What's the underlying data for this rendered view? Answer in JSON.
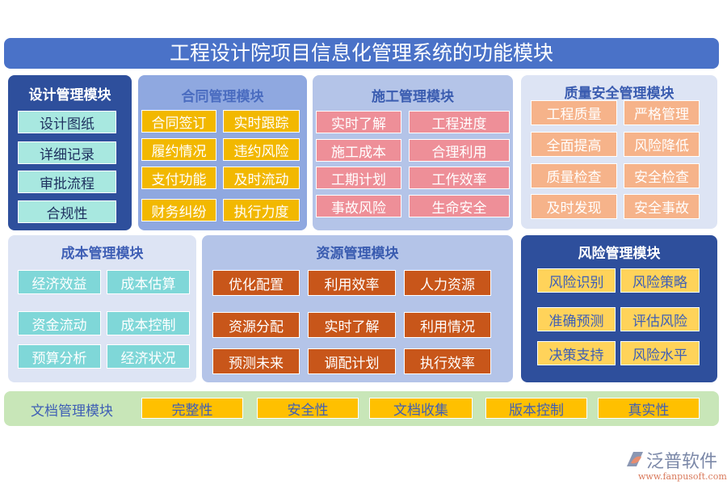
{
  "title": "工程设计院项目信息化管理系统的功能模块",
  "colors": {
    "title_bar": "#4a72c8",
    "dark_module": "#2e4f9c",
    "design_item": "#a8e8e0",
    "contract_item": "#f2b800",
    "construction_item": "#ee8f98",
    "quality_item": "#f6b38a",
    "cost_item": "#7fd7d8",
    "resource_item": "#c8561a",
    "risk_item": "#ffd35a",
    "doc_item": "#ffc000",
    "doc_band": "#c8e6b8"
  },
  "modules": {
    "design": {
      "title": "设计管理模块",
      "items": [
        "设计图纸",
        "详细记录",
        "审批流程",
        "合规性"
      ]
    },
    "contract": {
      "title": "合同管理模块",
      "items": [
        "合同签订",
        "实时跟踪",
        "履约情况",
        "违约风险",
        "支付功能",
        "及时流动",
        "财务纠纷",
        "执行力度"
      ]
    },
    "construction": {
      "title": "施工管理模块",
      "items": [
        "实时了解",
        "工程进度",
        "施工成本",
        "合理利用",
        "工期计划",
        "工作效率",
        "事故风险",
        "生命安全"
      ]
    },
    "quality": {
      "title": "质量安全管理模块",
      "items": [
        "工程质量",
        "严格管理",
        "全面提高",
        "风险降低",
        "质量检查",
        "安全检查",
        "及时发现",
        "安全事故"
      ]
    },
    "cost": {
      "title": "成本管理模块",
      "items": [
        "经济效益",
        "成本估算",
        "资金流动",
        "成本控制",
        "预算分析",
        "经济状况"
      ]
    },
    "resource": {
      "title": "资源管理模块",
      "items": [
        "优化配置",
        "利用效率",
        "人力资源",
        "资源分配",
        "实时了解",
        "利用情况",
        "预测未来",
        "调配计划",
        "执行效率"
      ]
    },
    "risk": {
      "title": "风险管理模块",
      "items": [
        "风险识别",
        "风险策略",
        "准确预测",
        "评估风险",
        "决策支持",
        "风险水平"
      ]
    },
    "document": {
      "title": "文档管理模块",
      "items": [
        "完整性",
        "安全性",
        "文档收集",
        "版本控制",
        "真实性"
      ]
    }
  },
  "logo": {
    "name": "泛普软件",
    "url": "www.fanpusoft.com"
  }
}
